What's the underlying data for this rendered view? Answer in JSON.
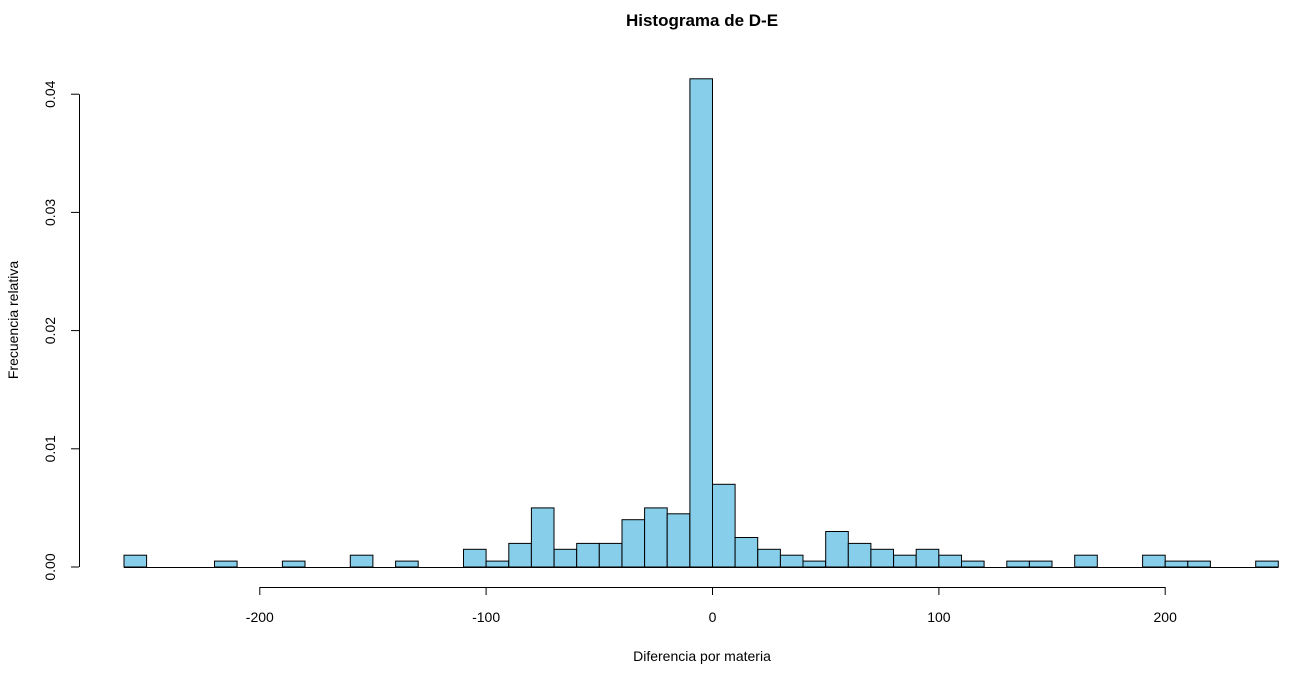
{
  "chart_data": {
    "type": "bar",
    "title": "Histograma de D-E",
    "xlabel": "Diferencia por materia",
    "ylabel": "Frecuencia relativa",
    "bar_color": "#87ceeb",
    "bin_width": 10,
    "xlim": [
      -260,
      250
    ],
    "ylim": [
      0,
      0.041
    ],
    "x_ticks": [
      -200,
      -100,
      0,
      100,
      200
    ],
    "x_tick_labels": [
      "-200",
      "-100",
      "0",
      "100",
      "200"
    ],
    "y_ticks": [
      0.0,
      0.01,
      0.02,
      0.03,
      0.04
    ],
    "y_tick_labels": [
      "0.00",
      "0.01",
      "0.02",
      "0.03",
      "0.04"
    ],
    "grid": false,
    "bins": [
      {
        "start": -260,
        "end": -250,
        "value": 0.001
      },
      {
        "start": -250,
        "end": -240,
        "value": 0
      },
      {
        "start": -240,
        "end": -230,
        "value": 0
      },
      {
        "start": -230,
        "end": -220,
        "value": 0
      },
      {
        "start": -220,
        "end": -210,
        "value": 0.0005
      },
      {
        "start": -210,
        "end": -200,
        "value": 0
      },
      {
        "start": -200,
        "end": -190,
        "value": 0
      },
      {
        "start": -190,
        "end": -180,
        "value": 0.0005
      },
      {
        "start": -180,
        "end": -170,
        "value": 0
      },
      {
        "start": -170,
        "end": -160,
        "value": 0
      },
      {
        "start": -160,
        "end": -150,
        "value": 0.001
      },
      {
        "start": -150,
        "end": -140,
        "value": 0
      },
      {
        "start": -140,
        "end": -130,
        "value": 0.0005
      },
      {
        "start": -130,
        "end": -120,
        "value": 0
      },
      {
        "start": -120,
        "end": -110,
        "value": 0
      },
      {
        "start": -110,
        "end": -100,
        "value": 0.0015
      },
      {
        "start": -100,
        "end": -90,
        "value": 0.0005
      },
      {
        "start": -90,
        "end": -80,
        "value": 0.002
      },
      {
        "start": -80,
        "end": -70,
        "value": 0.005
      },
      {
        "start": -70,
        "end": -60,
        "value": 0.0015
      },
      {
        "start": -60,
        "end": -50,
        "value": 0.002
      },
      {
        "start": -50,
        "end": -40,
        "value": 0.002
      },
      {
        "start": -40,
        "end": -30,
        "value": 0.004
      },
      {
        "start": -30,
        "end": -20,
        "value": 0.005
      },
      {
        "start": -20,
        "end": -10,
        "value": 0.0045
      },
      {
        "start": -10,
        "end": 0,
        "value": 0.0413
      },
      {
        "start": 0,
        "end": 10,
        "value": 0.007
      },
      {
        "start": 10,
        "end": 20,
        "value": 0.0025
      },
      {
        "start": 20,
        "end": 30,
        "value": 0.0015
      },
      {
        "start": 30,
        "end": 40,
        "value": 0.001
      },
      {
        "start": 40,
        "end": 50,
        "value": 0.0005
      },
      {
        "start": 50,
        "end": 60,
        "value": 0.003
      },
      {
        "start": 60,
        "end": 70,
        "value": 0.002
      },
      {
        "start": 70,
        "end": 80,
        "value": 0.0015
      },
      {
        "start": 80,
        "end": 90,
        "value": 0.001
      },
      {
        "start": 90,
        "end": 100,
        "value": 0.0015
      },
      {
        "start": 100,
        "end": 110,
        "value": 0.001
      },
      {
        "start": 110,
        "end": 120,
        "value": 0.0005
      },
      {
        "start": 120,
        "end": 130,
        "value": 0
      },
      {
        "start": 130,
        "end": 140,
        "value": 0.0005
      },
      {
        "start": 140,
        "end": 150,
        "value": 0.0005
      },
      {
        "start": 150,
        "end": 160,
        "value": 0
      },
      {
        "start": 160,
        "end": 170,
        "value": 0.001
      },
      {
        "start": 170,
        "end": 180,
        "value": 0
      },
      {
        "start": 180,
        "end": 190,
        "value": 0
      },
      {
        "start": 190,
        "end": 200,
        "value": 0.001
      },
      {
        "start": 200,
        "end": 210,
        "value": 0.0005
      },
      {
        "start": 210,
        "end": 220,
        "value": 0.0005
      },
      {
        "start": 220,
        "end": 230,
        "value": 0
      },
      {
        "start": 230,
        "end": 240,
        "value": 0
      },
      {
        "start": 240,
        "end": 250,
        "value": 0.0005
      }
    ]
  }
}
